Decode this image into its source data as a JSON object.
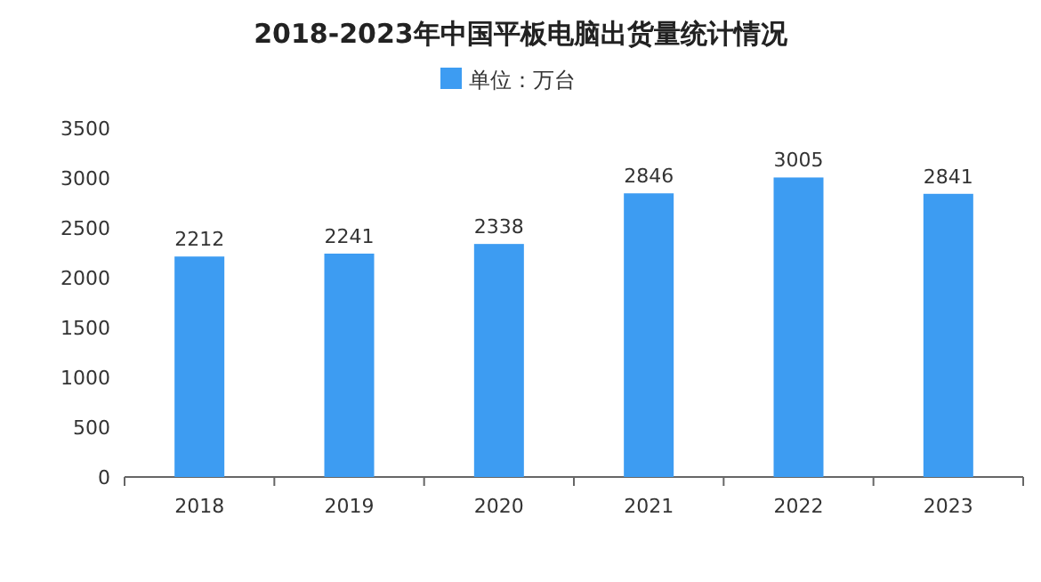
{
  "chart_data": {
    "type": "bar",
    "title": "2018-2023年中国平板电脑出货量统计情况",
    "categories": [
      "2018",
      "2019",
      "2020",
      "2021",
      "2022",
      "2023"
    ],
    "series": [
      {
        "name": "单位：万台",
        "color": "#3d9cf2",
        "values": [
          2212,
          2241,
          2338,
          2846,
          3005,
          2841
        ]
      }
    ],
    "ylim": [
      0,
      3500
    ],
    "yticks": [
      0,
      500,
      1000,
      1500,
      2000,
      2500,
      3000,
      3500
    ],
    "data_labels": true,
    "legend": "top"
  }
}
